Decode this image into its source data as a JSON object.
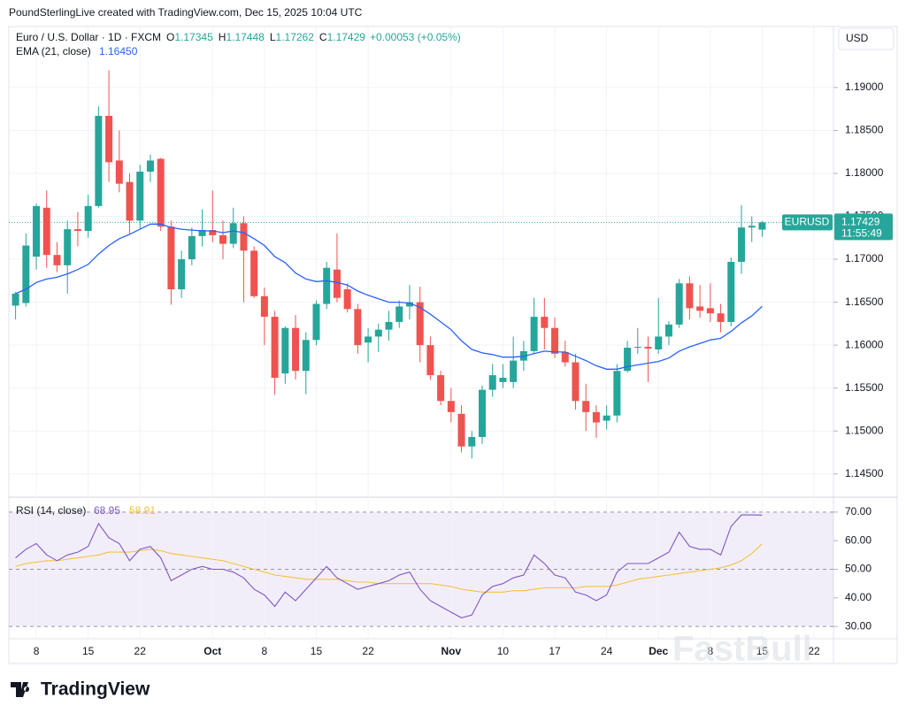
{
  "header": "PoundSterlingLive created with TradingView.com, Dec 15, 2025 10:04 UTC",
  "footer_brand": "TradingView",
  "watermark": "FastBull",
  "chart_data": [
    {
      "type": "candlestick",
      "axis_unit": "USD",
      "legend": {
        "symbol": "Euro / U.S. Dollar · 1D · FXCM",
        "o": "O",
        "h": "H",
        "l": "L",
        "c": "C",
        "change": "+0.00053 (+0.05%)"
      },
      "tag": {
        "symbol": "EURUSD",
        "countdown": "11:55:49"
      },
      "up_color": "#26a69a",
      "down_color": "#ef5350",
      "grid": true,
      "categories": [
        null,
        null,
        "8",
        null,
        null,
        null,
        null,
        "15",
        null,
        null,
        null,
        null,
        "22",
        null,
        null,
        null,
        null,
        null,
        null,
        "Oct",
        null,
        null,
        null,
        null,
        "8",
        null,
        null,
        null,
        null,
        "15",
        null,
        null,
        null,
        null,
        "22",
        null,
        null,
        null,
        null,
        null,
        null,
        null,
        "Nov",
        null,
        null,
        null,
        null,
        "10",
        null,
        null,
        null,
        null,
        "17",
        null,
        null,
        null,
        null,
        "24",
        null,
        null,
        null,
        null,
        "Dec",
        null,
        null,
        null,
        null,
        "8",
        null,
        null,
        null,
        null,
        "15",
        null,
        null,
        null,
        null,
        "22"
      ],
      "open": [
        1.1646,
        1.1649,
        1.1703,
        1.176,
        1.1705,
        1.1693,
        1.1735,
        1.1733,
        1.1762,
        1.1867,
        1.1815,
        1.179,
        1.1745,
        1.1802,
        1.1817,
        1.1738,
        1.1665,
        1.17,
        1.1727,
        1.1734,
        1.1728,
        1.1718,
        1.1742,
        1.171,
        1.1657,
        1.1633,
        1.1567,
        1.162,
        1.157,
        1.1606,
        1.1648,
        1.1688,
        1.1665,
        1.1642,
        1.1603,
        1.161,
        1.1618,
        1.1627,
        1.1645,
        1.165,
        1.16,
        1.1565,
        1.1535,
        1.152,
        1.1482,
        1.1493,
        1.1548,
        1.1557,
        1.1557,
        1.1582,
        1.1593,
        1.1633,
        1.162,
        1.1592,
        1.158,
        1.1535,
        1.1522,
        1.1512,
        1.1518,
        1.157,
        1.1597,
        1.1598,
        1.1595,
        1.161,
        1.1624,
        1.1672,
        1.1645,
        1.1643,
        1.1637,
        1.1627,
        1.1697,
        1.1737,
        1.17345,
        null,
        null,
        null,
        null,
        null
      ],
      "high": [
        1.1662,
        1.173,
        1.1765,
        1.178,
        1.172,
        1.1745,
        1.1755,
        1.1775,
        1.1878,
        1.192,
        1.185,
        1.18,
        1.181,
        1.1822,
        1.1818,
        1.1745,
        1.171,
        1.1737,
        1.1758,
        1.178,
        1.1745,
        1.176,
        1.175,
        1.1715,
        1.1667,
        1.164,
        1.1622,
        1.1635,
        1.1615,
        1.1652,
        1.1697,
        1.173,
        1.1672,
        1.1648,
        1.162,
        1.1625,
        1.164,
        1.1652,
        1.167,
        1.1668,
        1.161,
        1.157,
        1.155,
        1.153,
        1.15,
        1.1553,
        1.1578,
        1.1578,
        1.161,
        1.1605,
        1.1655,
        1.1655,
        1.1632,
        1.1605,
        1.159,
        1.1555,
        1.153,
        1.153,
        1.1578,
        1.1605,
        1.162,
        1.161,
        1.1655,
        1.1628,
        1.1677,
        1.168,
        1.167,
        1.1672,
        1.1648,
        1.1702,
        1.1763,
        1.175,
        1.17448,
        null,
        null,
        null,
        null,
        null
      ],
      "low": [
        1.163,
        1.1645,
        1.1688,
        1.169,
        1.1685,
        1.166,
        1.1715,
        1.1725,
        1.176,
        1.179,
        1.1778,
        1.173,
        1.1735,
        1.179,
        1.1733,
        1.1647,
        1.1655,
        1.1693,
        1.1715,
        1.172,
        1.17,
        1.1713,
        1.165,
        1.1655,
        1.16,
        1.1542,
        1.1555,
        1.156,
        1.1543,
        1.16,
        1.1642,
        1.165,
        1.1638,
        1.159,
        1.158,
        1.1592,
        1.1605,
        1.162,
        1.163,
        1.158,
        1.156,
        1.153,
        1.151,
        1.1475,
        1.1468,
        1.1485,
        1.154,
        1.155,
        1.155,
        1.157,
        1.159,
        1.1595,
        1.1585,
        1.1575,
        1.1525,
        1.15,
        1.1492,
        1.1502,
        1.151,
        1.1568,
        1.159,
        1.1557,
        1.159,
        1.16,
        1.162,
        1.163,
        1.1632,
        1.1627,
        1.1615,
        1.1622,
        1.1683,
        1.172,
        1.17262,
        null,
        null,
        null,
        null,
        null
      ],
      "close": [
        1.166,
        1.1716,
        1.1762,
        1.1705,
        1.1693,
        1.1735,
        1.1733,
        1.1762,
        1.1867,
        1.1813,
        1.1788,
        1.1745,
        1.1802,
        1.1815,
        1.1738,
        1.1665,
        1.17,
        1.1727,
        1.1734,
        1.1728,
        1.1718,
        1.1742,
        1.171,
        1.1657,
        1.1633,
        1.1562,
        1.162,
        1.157,
        1.1606,
        1.1648,
        1.169,
        1.1655,
        1.1642,
        1.16,
        1.161,
        1.1618,
        1.1627,
        1.1645,
        1.165,
        1.16,
        1.1565,
        1.1535,
        1.1522,
        1.1482,
        1.1493,
        1.1548,
        1.1565,
        1.1562,
        1.1582,
        1.1593,
        1.1633,
        1.162,
        1.159,
        1.158,
        1.1535,
        1.1522,
        1.151,
        1.1518,
        1.157,
        1.1597,
        1.1598,
        1.1596,
        1.161,
        1.1624,
        1.1672,
        1.1643,
        1.164,
        1.1637,
        1.1627,
        1.1697,
        1.1737,
        1.1739,
        1.17429,
        null,
        null,
        null,
        null,
        null
      ],
      "series": [
        {
          "name": "EMA (21, close)",
          "color": "#2962ff",
          "value_label_last": "1.16450",
          "values": [
            1.166,
            1.1665,
            1.1673,
            1.1677,
            1.1679,
            1.1683,
            1.1688,
            1.1694,
            1.1706,
            1.1716,
            1.1724,
            1.1729,
            1.1735,
            1.1741,
            1.1741,
            1.1737,
            1.1735,
            1.1734,
            1.1733,
            1.1733,
            1.1731,
            1.1733,
            1.1731,
            1.1724,
            1.1716,
            1.1703,
            1.1696,
            1.1684,
            1.1677,
            1.1674,
            1.1675,
            1.1673,
            1.167,
            1.1663,
            1.1658,
            1.1654,
            1.165,
            1.165,
            1.1649,
            1.1644,
            1.1636,
            1.1627,
            1.1618,
            1.1605,
            1.1595,
            1.1591,
            1.1589,
            1.1586,
            1.1586,
            1.1587,
            1.159,
            1.1593,
            1.1592,
            1.1592,
            1.1587,
            1.1582,
            1.1576,
            1.1572,
            1.1572,
            1.1575,
            1.1577,
            1.1579,
            1.1581,
            1.1585,
            1.1593,
            1.1598,
            1.1602,
            1.1606,
            1.1608,
            1.1616,
            1.1626,
            1.1634,
            1.1645,
            null,
            null,
            null,
            null,
            null
          ]
        }
      ],
      "ylim": [
        1.1425,
        1.1971
      ],
      "yticks": [
        {
          "value": 1.145,
          "label": "1.14500"
        },
        {
          "value": 1.15,
          "label": "1.15000"
        },
        {
          "value": 1.155,
          "label": "1.15500"
        },
        {
          "value": 1.16,
          "label": "1.16000"
        },
        {
          "value": 1.165,
          "label": "1.16500"
        },
        {
          "value": 1.17,
          "label": "1.17000"
        },
        {
          "value": 1.175,
          "label": "1.17500"
        },
        {
          "value": 1.18,
          "label": "1.18000"
        },
        {
          "value": 1.185,
          "label": "1.18500"
        },
        {
          "value": 1.19,
          "label": "1.19000"
        }
      ]
    },
    {
      "type": "line",
      "series": [
        {
          "name": "RSI (14, close)",
          "color": "#7e57c2",
          "values": [
            54,
            57,
            59,
            55,
            53,
            55,
            56,
            58,
            66,
            61,
            59,
            53,
            57,
            58,
            54,
            46,
            48,
            50,
            51,
            50,
            50,
            49,
            47,
            43,
            41,
            37,
            42,
            39,
            43,
            47,
            51,
            47,
            45,
            43,
            44,
            45,
            46,
            48,
            49,
            43,
            39,
            37,
            35,
            33,
            34,
            41,
            44,
            45,
            47,
            48,
            55,
            52,
            48,
            47,
            42,
            41,
            39,
            41,
            49,
            52,
            52,
            52,
            54,
            56,
            63,
            58,
            57,
            57,
            55,
            65,
            69,
            69,
            68.95,
            null,
            null,
            null,
            null,
            null
          ]
        },
        {
          "color": "#f5c242",
          "values": [
            51,
            52,
            52.5,
            53,
            53,
            53.5,
            54,
            54.5,
            55,
            56,
            56,
            56,
            56.5,
            57,
            56.5,
            55.5,
            55,
            54.5,
            54,
            53.5,
            53,
            52,
            51,
            50,
            49,
            48,
            47.5,
            47,
            46.5,
            46.5,
            46.5,
            46.5,
            46,
            45.5,
            45.5,
            45,
            45,
            45,
            45,
            45,
            45,
            44.5,
            44,
            43,
            42.5,
            42,
            42,
            42,
            42.5,
            42.5,
            43,
            43.5,
            43.5,
            43.5,
            43.5,
            44,
            44,
            44,
            44.5,
            45.5,
            46.5,
            47,
            47.5,
            48,
            48.5,
            49,
            49.5,
            50,
            50.5,
            51.5,
            53,
            55.5,
            58.91,
            null,
            null,
            null,
            null,
            null
          ]
        }
      ],
      "hlines": [
        30,
        50,
        70
      ],
      "ylim": [
        25.7,
        74.3
      ],
      "yticks": [
        {
          "value": 30,
          "label": "30.00"
        },
        {
          "value": 40,
          "label": "40.00"
        },
        {
          "value": 50,
          "label": "50.00"
        },
        {
          "value": 60,
          "label": "60.00"
        },
        {
          "value": 70,
          "label": "70.00"
        }
      ]
    }
  ]
}
